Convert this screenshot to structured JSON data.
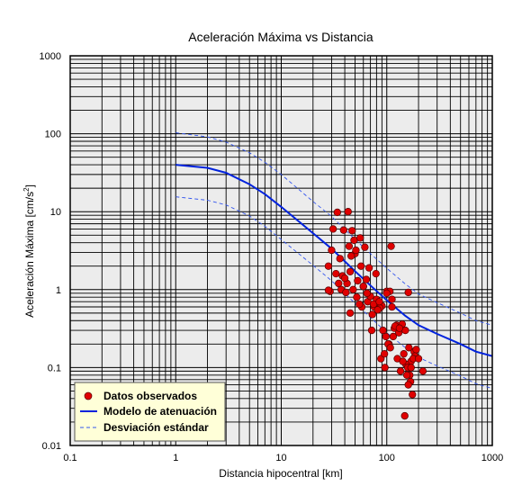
{
  "chart_data": {
    "type": "scatter",
    "title": "Aceleración Máxima vs Distancia",
    "xlabel": "Distancia hipocentral [km]",
    "ylabel": "Aceleración Máxima [cm/s²]",
    "x_scale": "log",
    "y_scale": "log",
    "xlim": [
      0.1,
      1000
    ],
    "ylim": [
      0.01,
      1000
    ],
    "grid": true,
    "legend_position": "bottom-left",
    "x_ticks": [
      "0.1",
      "1",
      "10",
      "100",
      "1000"
    ],
    "y_ticks": [
      "0.01",
      "0.1",
      "1",
      "10",
      "100",
      "1000"
    ],
    "colors": {
      "points": "#e00000",
      "model": "#0022dd",
      "std": "#3355ee",
      "plot_bg": "#ececec",
      "legend_bg": "#ffffd8"
    },
    "legend": {
      "observed": "Datos observados",
      "model": "Modelo de atenuación",
      "std": "Desviación estándar"
    },
    "model_curve": {
      "x": [
        1,
        2,
        3,
        5,
        7,
        10,
        20,
        30,
        50,
        70,
        100,
        150,
        200,
        300,
        500,
        700,
        1000
      ],
      "y": [
        40,
        36.5,
        31.5,
        22.5,
        16.8,
        11.5,
        5.3,
        3.35,
        1.72,
        1.13,
        0.73,
        0.46,
        0.35,
        0.27,
        0.2,
        0.16,
        0.14
      ]
    },
    "std_upper": {
      "x": [
        1,
        2,
        3,
        5,
        7,
        10,
        20,
        30,
        50,
        70,
        100,
        150,
        200,
        300,
        500,
        700,
        1000
      ],
      "y": [
        103,
        91,
        78,
        57,
        43,
        30,
        13.5,
        8.7,
        4.4,
        2.9,
        1.88,
        1.18,
        0.88,
        0.68,
        0.5,
        0.4,
        0.35
      ]
    },
    "std_lower": {
      "x": [
        1,
        2,
        3,
        5,
        7,
        10,
        20,
        30,
        50,
        70,
        100,
        150,
        200,
        300,
        500,
        700,
        1000
      ],
      "y": [
        15.5,
        14,
        12.2,
        8.8,
        6.5,
        4.4,
        2.05,
        1.3,
        0.67,
        0.44,
        0.28,
        0.18,
        0.135,
        0.105,
        0.078,
        0.062,
        0.054
      ]
    },
    "observed": {
      "x": [
        34,
        43,
        31,
        39,
        47,
        49,
        30,
        36,
        44,
        50,
        56,
        62,
        110,
        28,
        46,
        51,
        57,
        29,
        35,
        38,
        42,
        48,
        53,
        60,
        66,
        70,
        76,
        80,
        84,
        90,
        100,
        107,
        112,
        160,
        33,
        37,
        41,
        45,
        52,
        58,
        64,
        68,
        73,
        79,
        86,
        92,
        98,
        105,
        112,
        118,
        124,
        130,
        140,
        150,
        162,
        170,
        182,
        190,
        28,
        40,
        55,
        72,
        88,
        96,
        103,
        115,
        126,
        135,
        145,
        152,
        158,
        165,
        175,
        185,
        220,
        60,
        75,
        82,
        95,
        108,
        120,
        132,
        142,
        155,
        168,
        178,
        45,
        65,
        85,
        100,
        148,
        160,
        170,
        200
      ],
      "y": [
        9.8,
        10,
        6,
        5.8,
        5.7,
        4.3,
        3.2,
        2.5,
        3.6,
        2.9,
        4.6,
        3.5,
        3.6,
        2.0,
        2.7,
        3.2,
        2.0,
        0.95,
        1.2,
        1.5,
        1.2,
        1.0,
        1.3,
        1.1,
        0.7,
        0.82,
        0.6,
        0.75,
        0.62,
        0.62,
        0.95,
        0.95,
        0.75,
        0.92,
        1.6,
        1.0,
        0.92,
        1.7,
        0.8,
        0.6,
        1.35,
        1.9,
        0.48,
        1.6,
        0.58,
        0.3,
        0.25,
        0.2,
        0.6,
        0.32,
        0.35,
        0.28,
        0.36,
        0.3,
        0.18,
        0.12,
        0.16,
        0.17,
        0.98,
        1.4,
        0.65,
        0.3,
        0.13,
        0.1,
        0.2,
        0.25,
        0.13,
        0.09,
        0.15,
        0.11,
        0.1,
        0.08,
        0.045,
        0.14,
        0.09,
        1.1,
        0.65,
        0.55,
        0.15,
        0.18,
        0.34,
        0.32,
        0.12,
        0.08,
        0.066,
        0.13,
        0.5,
        0.9,
        0.7,
        0.9,
        0.024,
        0.06,
        0.1,
        0.13
      ]
    }
  }
}
